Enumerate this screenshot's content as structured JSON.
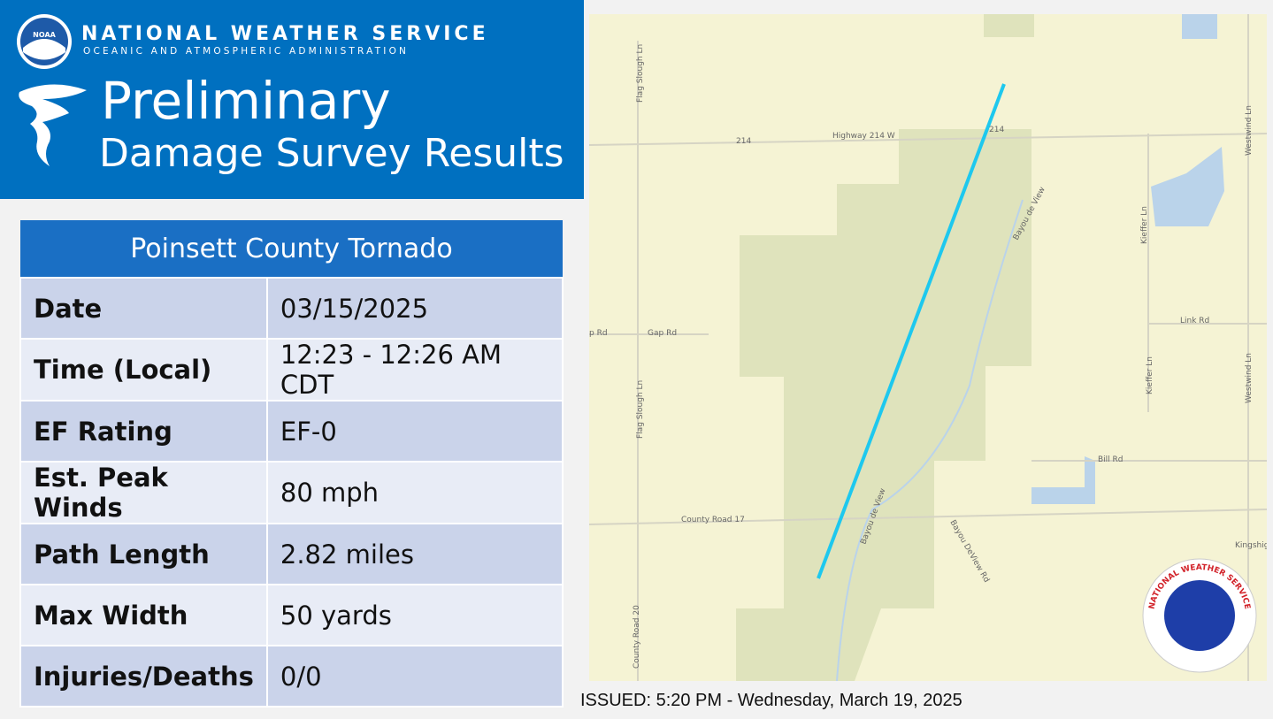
{
  "header": {
    "agency": "NATIONAL WEATHER SERVICE",
    "subagency": "OCEANIC AND ATMOSPHERIC ADMINISTRATION",
    "logo_text": "NOAA",
    "title_line1": "Preliminary",
    "title_line2": "Damage Survey Results"
  },
  "table": {
    "title": "Poinsett County Tornado",
    "rows": [
      [
        "Date",
        "03/15/2025"
      ],
      [
        "Time (Local)",
        "12:23 - 12:26 AM CDT"
      ],
      [
        "EF Rating",
        "EF-0"
      ],
      [
        "Est. Peak Winds",
        "80 mph"
      ],
      [
        "Path Length",
        "2.82 miles"
      ],
      [
        "Max Width",
        "50 yards"
      ],
      [
        "Injuries/Deaths",
        "0/0"
      ]
    ]
  },
  "map": {
    "labels": {
      "highway": "Highway 214 W",
      "shield_west": "214",
      "shield_east": "214",
      "flag_slough_north": "Flag Slough Ln",
      "flag_slough_south": "Flag Slough Ln",
      "gap_rd": "Gap Rd",
      "gap_rd_cut": "p Rd",
      "county_road_17": "County Road 17",
      "county_road_20": "County Road 20",
      "bayou_north": "Bayou de View",
      "bayou_south": "Bayou de View",
      "bayou_rd": "Bayou DeView Rd",
      "kieffer_north": "Kieffer Ln",
      "kieffer_south": "Kieffer Ln",
      "westwind_north": "Westwind Ln",
      "westwind_south": "Westwind Ln",
      "link_rd": "Link Rd",
      "bill_rd": "Bill Rd",
      "kingshig": "Kingshig"
    }
  },
  "logo": {
    "text": "NATIONAL WEATHER SERVICE"
  },
  "footer": {
    "issued": "ISSUED: 5:20 PM - Wednesday, March 19, 2025"
  }
}
